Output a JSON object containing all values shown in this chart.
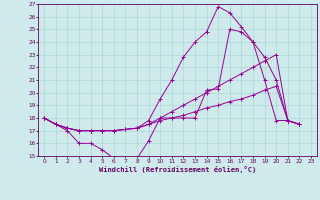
{
  "title": "",
  "xlabel": "Windchill (Refroidissement éolien,°C)",
  "ylabel": "",
  "bg_color": "#ceeaea",
  "grid_color": "#aad8d8",
  "line_color": "#990099",
  "xlim": [
    -0.5,
    23.5
  ],
  "ylim": [
    15,
    27
  ],
  "xtick_labels": [
    "0",
    "1",
    "2",
    "3",
    "4",
    "5",
    "6",
    "7",
    "8",
    "9",
    "10",
    "11",
    "12",
    "13",
    "14",
    "15",
    "16",
    "17",
    "18",
    "19",
    "20",
    "21",
    "22",
    "23"
  ],
  "ytick_labels": [
    "15",
    "16",
    "17",
    "18",
    "19",
    "20",
    "21",
    "22",
    "23",
    "24",
    "25",
    "26",
    "27"
  ],
  "series": [
    [
      18.0,
      17.5,
      17.0,
      16.0,
      16.0,
      15.5,
      14.8,
      14.8,
      14.8,
      16.2,
      18.0,
      18.0,
      18.0,
      18.0,
      20.2,
      20.3,
      25.0,
      24.8,
      24.0,
      21.0,
      17.8,
      17.8,
      17.5
    ],
    [
      18.0,
      17.5,
      17.2,
      17.0,
      17.0,
      17.0,
      17.0,
      17.1,
      17.2,
      17.5,
      18.0,
      18.5,
      19.0,
      19.5,
      20.0,
      20.5,
      21.0,
      21.5,
      22.0,
      22.5,
      23.0,
      17.8,
      17.5
    ],
    [
      18.0,
      17.5,
      17.2,
      17.0,
      17.0,
      17.0,
      17.0,
      17.1,
      17.2,
      17.8,
      19.5,
      21.0,
      22.8,
      24.0,
      24.8,
      26.8,
      26.3,
      25.2,
      24.0,
      22.8,
      21.0,
      17.8,
      17.5
    ],
    [
      18.0,
      17.5,
      17.2,
      17.0,
      17.0,
      17.0,
      17.0,
      17.1,
      17.2,
      17.5,
      17.8,
      18.0,
      18.2,
      18.5,
      18.8,
      19.0,
      19.3,
      19.5,
      19.8,
      20.2,
      20.5,
      17.8,
      17.5
    ]
  ]
}
